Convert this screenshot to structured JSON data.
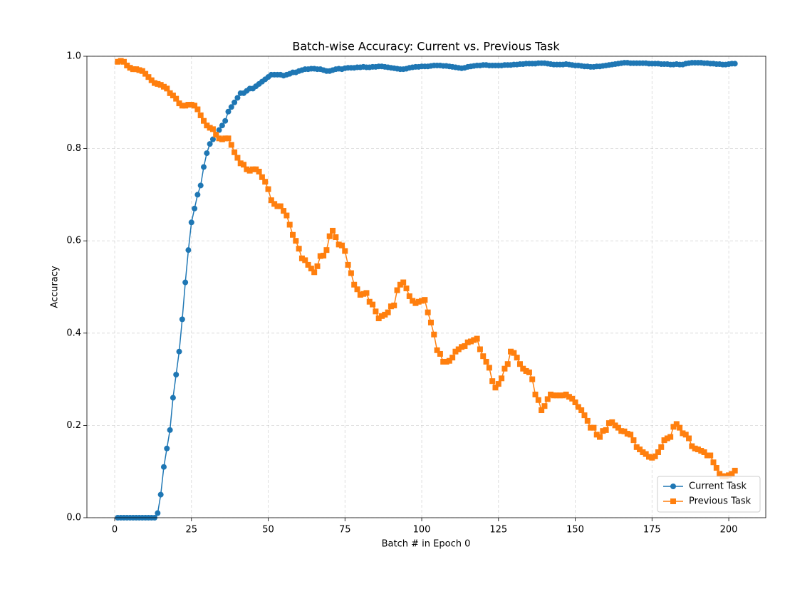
{
  "chart_data": {
    "type": "line",
    "title": "Batch-wise Accuracy: Current vs. Previous Task",
    "xlabel": "Batch # in Epoch 0",
    "ylabel": "Accuracy",
    "x": [
      1,
      2,
      3,
      4,
      5,
      6,
      7,
      8,
      9,
      10,
      11,
      12,
      13,
      14,
      15,
      16,
      17,
      18,
      19,
      20,
      21,
      22,
      23,
      24,
      25,
      26,
      27,
      28,
      29,
      30,
      31,
      32,
      33,
      34,
      35,
      36,
      37,
      38,
      39,
      40,
      41,
      42,
      43,
      44,
      45,
      46,
      47,
      48,
      49,
      50,
      51,
      52,
      53,
      54,
      55,
      56,
      57,
      58,
      59,
      60,
      61,
      62,
      63,
      64,
      65,
      66,
      67,
      68,
      69,
      70,
      71,
      72,
      73,
      74,
      75,
      76,
      77,
      78,
      79,
      80,
      81,
      82,
      83,
      84,
      85,
      86,
      87,
      88,
      89,
      90,
      91,
      92,
      93,
      94,
      95,
      96,
      97,
      98,
      99,
      100,
      101,
      102,
      103,
      104,
      105,
      106,
      107,
      108,
      109,
      110,
      111,
      112,
      113,
      114,
      115,
      116,
      117,
      118,
      119,
      120,
      121,
      122,
      123,
      124,
      125,
      126,
      127,
      128,
      129,
      130,
      131,
      132,
      133,
      134,
      135,
      136,
      137,
      138,
      139,
      140,
      141,
      142,
      143,
      144,
      145,
      146,
      147,
      148,
      149,
      150,
      151,
      152,
      153,
      154,
      155,
      156,
      157,
      158,
      159,
      160,
      161,
      162,
      163,
      164,
      165,
      166,
      167,
      168,
      169,
      170,
      171,
      172,
      173,
      174,
      175,
      176,
      177,
      178,
      179,
      180,
      181,
      182,
      183,
      184,
      185,
      186,
      187,
      188,
      189,
      190,
      191,
      192,
      193,
      194,
      195,
      196,
      197,
      198,
      199,
      200,
      201,
      202
    ],
    "series": [
      {
        "name": "Current Task",
        "color": "#1f77b4",
        "marker": "circle",
        "values": [
          0,
          0,
          0,
          0,
          0,
          0,
          0,
          0,
          0,
          0,
          0,
          0,
          0,
          0.01,
          0.05,
          0.11,
          0.15,
          0.19,
          0.26,
          0.31,
          0.36,
          0.43,
          0.51,
          0.58,
          0.64,
          0.67,
          0.7,
          0.72,
          0.76,
          0.79,
          0.81,
          0.82,
          0.83,
          0.84,
          0.85,
          0.86,
          0.88,
          0.89,
          0.9,
          0.91,
          0.92,
          0.92,
          0.925,
          0.93,
          0.93,
          0.935,
          0.94,
          0.945,
          0.95,
          0.955,
          0.96,
          0.96,
          0.96,
          0.96,
          0.958,
          0.96,
          0.962,
          0.965,
          0.965,
          0.968,
          0.97,
          0.972,
          0.972,
          0.973,
          0.973,
          0.972,
          0.972,
          0.97,
          0.968,
          0.968,
          0.97,
          0.972,
          0.973,
          0.972,
          0.974,
          0.975,
          0.975,
          0.975,
          0.976,
          0.976,
          0.977,
          0.976,
          0.976,
          0.977,
          0.977,
          0.978,
          0.978,
          0.977,
          0.976,
          0.975,
          0.974,
          0.973,
          0.972,
          0.972,
          0.973,
          0.975,
          0.976,
          0.977,
          0.977,
          0.978,
          0.978,
          0.978,
          0.979,
          0.98,
          0.98,
          0.98,
          0.979,
          0.979,
          0.978,
          0.977,
          0.976,
          0.975,
          0.974,
          0.975,
          0.977,
          0.978,
          0.979,
          0.98,
          0.98,
          0.981,
          0.981,
          0.98,
          0.98,
          0.98,
          0.98,
          0.98,
          0.981,
          0.981,
          0.981,
          0.982,
          0.982,
          0.983,
          0.983,
          0.984,
          0.984,
          0.984,
          0.984,
          0.985,
          0.985,
          0.985,
          0.984,
          0.983,
          0.982,
          0.982,
          0.982,
          0.982,
          0.983,
          0.982,
          0.981,
          0.98,
          0.98,
          0.979,
          0.978,
          0.978,
          0.977,
          0.977,
          0.978,
          0.978,
          0.979,
          0.98,
          0.981,
          0.982,
          0.983,
          0.984,
          0.985,
          0.986,
          0.986,
          0.985,
          0.985,
          0.985,
          0.985,
          0.985,
          0.985,
          0.984,
          0.984,
          0.984,
          0.984,
          0.983,
          0.983,
          0.983,
          0.982,
          0.982,
          0.983,
          0.982,
          0.982,
          0.984,
          0.985,
          0.986,
          0.986,
          0.986,
          0.986,
          0.985,
          0.985,
          0.984,
          0.984,
          0.983,
          0.983,
          0.982,
          0.982,
          0.983,
          0.984,
          0.984
        ]
      },
      {
        "name": "Previous Task",
        "color": "#ff7f0e",
        "marker": "square",
        "values": [
          0.988,
          0.99,
          0.988,
          0.98,
          0.975,
          0.972,
          0.972,
          0.97,
          0.968,
          0.962,
          0.955,
          0.948,
          0.942,
          0.94,
          0.938,
          0.934,
          0.93,
          0.92,
          0.915,
          0.908,
          0.898,
          0.893,
          0.893,
          0.895,
          0.895,
          0.893,
          0.885,
          0.872,
          0.86,
          0.85,
          0.845,
          0.842,
          0.83,
          0.822,
          0.82,
          0.822,
          0.822,
          0.808,
          0.792,
          0.78,
          0.768,
          0.765,
          0.755,
          0.752,
          0.755,
          0.755,
          0.75,
          0.738,
          0.728,
          0.712,
          0.688,
          0.68,
          0.675,
          0.675,
          0.665,
          0.655,
          0.635,
          0.613,
          0.6,
          0.583,
          0.562,
          0.558,
          0.548,
          0.54,
          0.532,
          0.545,
          0.567,
          0.568,
          0.58,
          0.61,
          0.622,
          0.608,
          0.592,
          0.59,
          0.578,
          0.548,
          0.53,
          0.505,
          0.495,
          0.483,
          0.485,
          0.487,
          0.468,
          0.462,
          0.447,
          0.432,
          0.437,
          0.44,
          0.445,
          0.458,
          0.46,
          0.493,
          0.505,
          0.51,
          0.497,
          0.48,
          0.47,
          0.465,
          0.468,
          0.47,
          0.472,
          0.445,
          0.423,
          0.397,
          0.363,
          0.355,
          0.338,
          0.338,
          0.34,
          0.347,
          0.36,
          0.365,
          0.37,
          0.372,
          0.38,
          0.382,
          0.385,
          0.388,
          0.365,
          0.35,
          0.338,
          0.325,
          0.296,
          0.282,
          0.29,
          0.302,
          0.323,
          0.333,
          0.36,
          0.357,
          0.347,
          0.333,
          0.323,
          0.318,
          0.315,
          0.3,
          0.267,
          0.255,
          0.233,
          0.242,
          0.257,
          0.267,
          0.265,
          0.265,
          0.265,
          0.265,
          0.267,
          0.262,
          0.258,
          0.25,
          0.24,
          0.233,
          0.222,
          0.21,
          0.195,
          0.195,
          0.18,
          0.175,
          0.188,
          0.19,
          0.205,
          0.207,
          0.2,
          0.195,
          0.188,
          0.187,
          0.182,
          0.18,
          0.168,
          0.153,
          0.148,
          0.142,
          0.138,
          0.132,
          0.13,
          0.133,
          0.142,
          0.153,
          0.168,
          0.172,
          0.175,
          0.197,
          0.203,
          0.195,
          0.183,
          0.18,
          0.172,
          0.155,
          0.15,
          0.148,
          0.145,
          0.142,
          0.135,
          0.135,
          0.12,
          0.108,
          0.095,
          0.09,
          0.09,
          0.092,
          0.095,
          0.102
        ]
      }
    ],
    "xlim": [
      -9.05,
      212.05
    ],
    "xticks": [
      0,
      25,
      50,
      75,
      100,
      125,
      150,
      175,
      200
    ],
    "ylim": [
      0,
      1
    ],
    "yticks": [
      {
        "value": 0,
        "label": "0.0"
      },
      0.2,
      0.4,
      0.6,
      0.8,
      {
        "value": 1,
        "label": "1.0"
      }
    ],
    "grid": true,
    "legend": "lower right"
  }
}
